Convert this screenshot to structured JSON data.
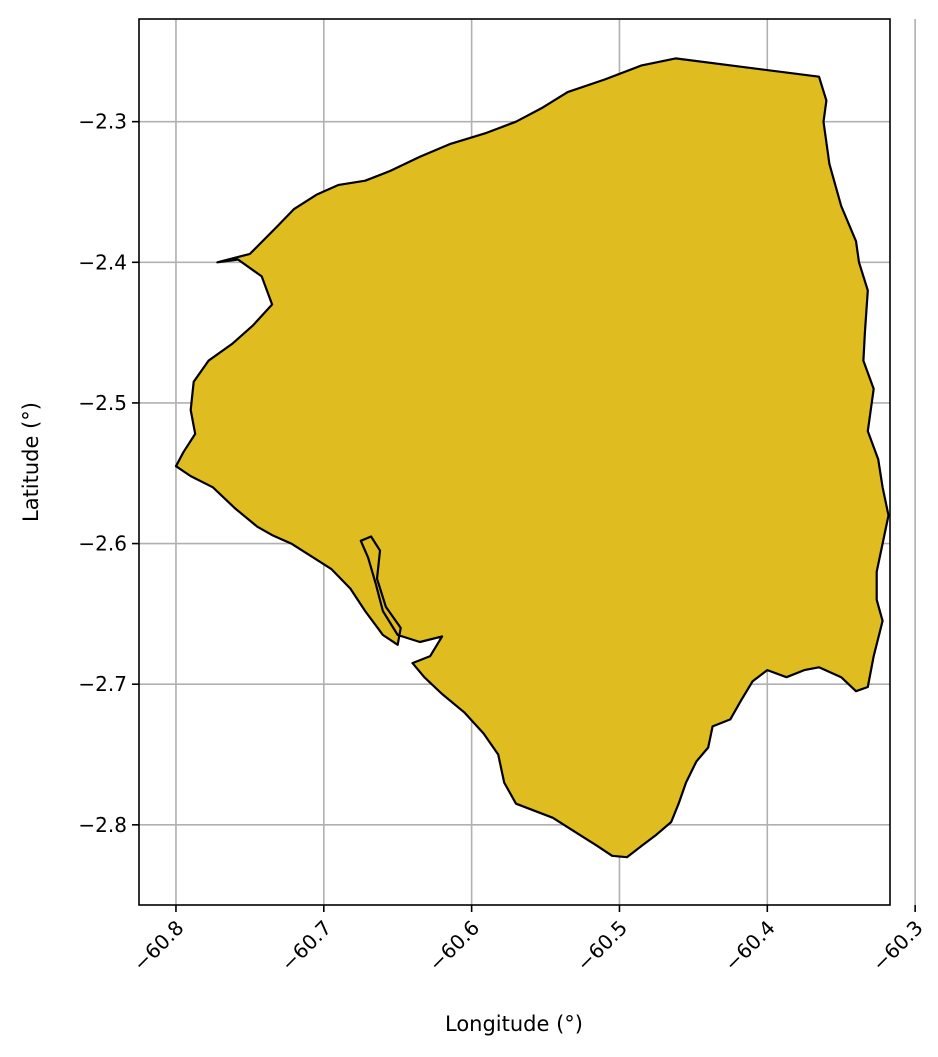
{
  "map": {
    "region_fill": "#DFBD20",
    "region_outline": "#000000",
    "grid": true,
    "x_axis": {
      "label": "Longitude (°)",
      "range": [
        -60.825,
        -60.317
      ],
      "ticks": [
        -60.8,
        -60.7,
        -60.6,
        -60.5,
        -60.4,
        -60.3
      ],
      "tick_labels": [
        "−60.8",
        "−60.7",
        "−60.6",
        "−60.5",
        "−60.4",
        "−60.3"
      ]
    },
    "y_axis": {
      "label": "Latitude (°)",
      "range": [
        -2.857,
        -2.227
      ],
      "ticks": [
        -2.3,
        -2.4,
        -2.5,
        -2.6,
        -2.7,
        -2.8
      ],
      "tick_labels": [
        "−2.3",
        "−2.4",
        "−2.5",
        "−2.6",
        "−2.7",
        "−2.8"
      ]
    },
    "boundary": [
      [
        -60.462,
        -2.255
      ],
      [
        -60.365,
        -2.268
      ],
      [
        -60.36,
        -2.285
      ],
      [
        -60.362,
        -2.3
      ],
      [
        -60.358,
        -2.33
      ],
      [
        -60.35,
        -2.36
      ],
      [
        -60.34,
        -2.385
      ],
      [
        -60.338,
        -2.4
      ],
      [
        -60.332,
        -2.42
      ],
      [
        -60.334,
        -2.45
      ],
      [
        -60.335,
        -2.47
      ],
      [
        -60.328,
        -2.49
      ],
      [
        -60.332,
        -2.52
      ],
      [
        -60.325,
        -2.54
      ],
      [
        -60.322,
        -2.56
      ],
      [
        -60.318,
        -2.58
      ],
      [
        -60.322,
        -2.6
      ],
      [
        -60.326,
        -2.62
      ],
      [
        -60.326,
        -2.64
      ],
      [
        -60.322,
        -2.655
      ],
      [
        -60.328,
        -2.68
      ],
      [
        -60.332,
        -2.702
      ],
      [
        -60.34,
        -2.705
      ],
      [
        -60.35,
        -2.695
      ],
      [
        -60.365,
        -2.688
      ],
      [
        -60.375,
        -2.69
      ],
      [
        -60.387,
        -2.695
      ],
      [
        -60.4,
        -2.69
      ],
      [
        -60.41,
        -2.698
      ],
      [
        -60.418,
        -2.712
      ],
      [
        -60.425,
        -2.725
      ],
      [
        -60.437,
        -2.73
      ],
      [
        -60.44,
        -2.745
      ],
      [
        -60.448,
        -2.755
      ],
      [
        -60.455,
        -2.77
      ],
      [
        -60.46,
        -2.785
      ],
      [
        -60.465,
        -2.798
      ],
      [
        -60.475,
        -2.807
      ],
      [
        -60.485,
        -2.815
      ],
      [
        -60.495,
        -2.823
      ],
      [
        -60.505,
        -2.822
      ],
      [
        -60.515,
        -2.815
      ],
      [
        -60.53,
        -2.805
      ],
      [
        -60.545,
        -2.795
      ],
      [
        -60.57,
        -2.785
      ],
      [
        -60.578,
        -2.77
      ],
      [
        -60.582,
        -2.75
      ],
      [
        -60.592,
        -2.735
      ],
      [
        -60.605,
        -2.72
      ],
      [
        -60.62,
        -2.707
      ],
      [
        -60.632,
        -2.695
      ],
      [
        -60.64,
        -2.685
      ],
      [
        -60.628,
        -2.68
      ],
      [
        -60.62,
        -2.666
      ],
      [
        -60.635,
        -2.67
      ],
      [
        -60.65,
        -2.665
      ],
      [
        -60.66,
        -2.648
      ],
      [
        -60.665,
        -2.628
      ],
      [
        -60.67,
        -2.61
      ],
      [
        -60.675,
        -2.598
      ],
      [
        -60.668,
        -2.595
      ],
      [
        -60.662,
        -2.605
      ],
      [
        -60.664,
        -2.625
      ],
      [
        -60.658,
        -2.645
      ],
      [
        -60.648,
        -2.66
      ],
      [
        -60.65,
        -2.672
      ],
      [
        -60.66,
        -2.665
      ],
      [
        -60.672,
        -2.648
      ],
      [
        -60.682,
        -2.632
      ],
      [
        -60.695,
        -2.618
      ],
      [
        -60.71,
        -2.608
      ],
      [
        -60.722,
        -2.6
      ],
      [
        -60.735,
        -2.594
      ],
      [
        -60.745,
        -2.588
      ],
      [
        -60.76,
        -2.575
      ],
      [
        -60.775,
        -2.56
      ],
      [
        -60.79,
        -2.552
      ],
      [
        -60.8,
        -2.545
      ],
      [
        -60.795,
        -2.535
      ],
      [
        -60.787,
        -2.522
      ],
      [
        -60.79,
        -2.505
      ],
      [
        -60.788,
        -2.485
      ],
      [
        -60.778,
        -2.47
      ],
      [
        -60.762,
        -2.458
      ],
      [
        -60.748,
        -2.445
      ],
      [
        -60.735,
        -2.43
      ],
      [
        -60.742,
        -2.41
      ],
      [
        -60.758,
        -2.398
      ],
      [
        -60.772,
        -2.4
      ],
      [
        -60.75,
        -2.394
      ],
      [
        -60.732,
        -2.375
      ],
      [
        -60.72,
        -2.362
      ],
      [
        -60.705,
        -2.352
      ],
      [
        -60.69,
        -2.345
      ],
      [
        -60.672,
        -2.342
      ],
      [
        -60.655,
        -2.335
      ],
      [
        -60.635,
        -2.325
      ],
      [
        -60.615,
        -2.316
      ],
      [
        -60.59,
        -2.308
      ],
      [
        -60.57,
        -2.3
      ],
      [
        -60.552,
        -2.29
      ],
      [
        -60.535,
        -2.279
      ],
      [
        -60.51,
        -2.27
      ],
      [
        -60.485,
        -2.26
      ],
      [
        -60.462,
        -2.255
      ]
    ]
  }
}
